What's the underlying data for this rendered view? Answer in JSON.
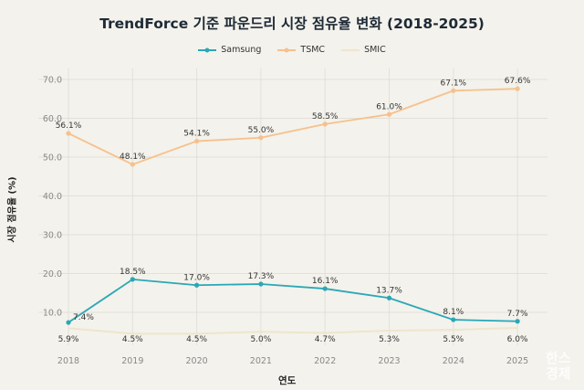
{
  "chart_data": {
    "type": "line",
    "title": "TrendForce 기준 파운드리 시장 점유율 변화 (2018-2025)",
    "xlabel": "연도",
    "ylabel": "시장 점유율 (%)",
    "x": [
      "2018",
      "2019",
      "2020",
      "2021",
      "2022",
      "2023",
      "2024",
      "2025"
    ],
    "yticks": [
      "10.0",
      "20.0",
      "30.0",
      "40.0",
      "50.0",
      "60.0",
      "70.0"
    ],
    "ylim": [
      0,
      72
    ],
    "grid": true,
    "legend_position": "top-center",
    "series": [
      {
        "name": "Samsung",
        "color": "#2aa7b6",
        "values": [
          7.4,
          18.5,
          17.0,
          17.3,
          16.1,
          13.7,
          8.1,
          7.7
        ],
        "labels": [
          "7.4%",
          "18.5%",
          "17.0%",
          "17.3%",
          "16.1%",
          "13.7%",
          "8.1%",
          "7.7%"
        ]
      },
      {
        "name": "TSMC",
        "color": "#f7c08c",
        "values": [
          56.1,
          48.1,
          54.1,
          55.0,
          58.5,
          61.0,
          67.1,
          67.6
        ],
        "labels": [
          "56.1%",
          "48.1%",
          "54.1%",
          "55.0%",
          "58.5%",
          "61.0%",
          "67.1%",
          "67.6%"
        ]
      },
      {
        "name": "SMIC",
        "color": "#eee5cc",
        "values": [
          5.9,
          4.5,
          4.5,
          5.0,
          4.7,
          5.3,
          5.5,
          6.0
        ],
        "labels": [
          "5.9%",
          "4.5%",
          "4.5%",
          "5.0%",
          "4.7%",
          "5.3%",
          "5.5%",
          "6.0%"
        ]
      }
    ]
  },
  "watermark": "한스경제"
}
